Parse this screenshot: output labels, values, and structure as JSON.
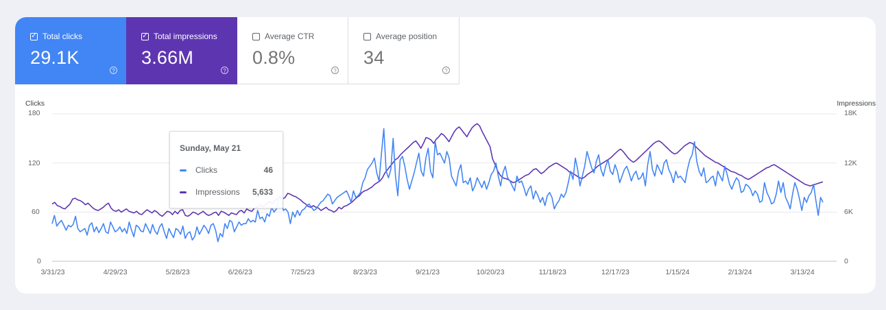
{
  "metrics": [
    {
      "label": "Total clicks",
      "value": "29.1K",
      "checked": true
    },
    {
      "label": "Total impressions",
      "value": "3.66M",
      "checked": true
    },
    {
      "label": "Average CTR",
      "value": "0.8%",
      "checked": false
    },
    {
      "label": "Average position",
      "value": "34",
      "checked": false
    }
  ],
  "icons": {
    "checkbox": "checkbox-icon",
    "help": "help-icon"
  },
  "colors": {
    "clicks": "#4285f4",
    "impressions": "#5e35b1"
  },
  "tooltip": {
    "date": "Sunday, May 21",
    "rows": [
      {
        "label": "Clicks",
        "value": "46"
      },
      {
        "label": "Impressions",
        "value": "5,633"
      }
    ]
  },
  "chart_data": {
    "type": "line",
    "y_left": {
      "label": "Clicks",
      "ticks": [
        "180",
        "120",
        "60",
        "0"
      ],
      "range": [
        0,
        180
      ]
    },
    "y_right": {
      "label": "Impressions",
      "ticks": [
        "18K",
        "12K",
        "6K",
        "0"
      ],
      "range": [
        0,
        18000
      ]
    },
    "x_ticks": [
      "3/31/23",
      "4/29/23",
      "5/28/23",
      "6/26/23",
      "7/25/23",
      "8/23/23",
      "9/21/23",
      "10/20/23",
      "11/18/23",
      "12/17/23",
      "1/15/24",
      "2/13/24",
      "3/13/24"
    ],
    "x_range": [
      "2023-03-31",
      "2024-03-27"
    ],
    "grid": true,
    "series": [
      {
        "name": "Clicks",
        "color": "#4285f4",
        "axis": "left",
        "values": [
          46,
          56,
          43,
          47,
          50,
          44,
          38,
          44,
          42,
          45,
          55,
          40,
          36,
          38,
          40,
          32,
          44,
          47,
          36,
          42,
          35,
          40,
          46,
          36,
          34,
          48,
          42,
          36,
          38,
          42,
          36,
          40,
          34,
          48,
          38,
          30,
          44,
          42,
          37,
          36,
          46,
          40,
          34,
          45,
          37,
          33,
          42,
          46,
          36,
          28,
          40,
          34,
          29,
          40,
          38,
          33,
          43,
          28,
          34,
          36,
          26,
          30,
          42,
          33,
          38,
          44,
          40,
          34,
          44,
          46,
          38,
          24,
          34,
          30,
          46,
          40,
          50,
          48,
          36,
          42,
          48,
          44,
          46,
          46,
          52,
          48,
          50,
          48,
          62,
          52,
          54,
          48,
          58,
          55,
          66,
          60,
          64,
          78,
          76,
          62,
          64,
          60,
          46,
          60,
          54,
          62,
          56,
          62,
          64,
          68,
          70,
          66,
          62,
          64,
          68,
          72,
          74,
          78,
          82,
          80,
          70,
          74,
          78,
          80,
          82,
          84,
          86,
          80,
          72,
          86,
          78,
          80,
          84,
          96,
          102,
          112,
          116,
          120,
          126,
          108,
          98,
          132,
          162,
          110,
          102,
          112,
          150,
          104,
          80,
          124,
          128,
          116,
          100,
          88,
          98,
          108,
          120,
          132,
          110,
          104,
          126,
          138,
          110,
          102,
          146,
          130,
          132,
          126,
          120,
          134,
          126,
          104,
          98,
          92,
          110,
          118,
          96,
          98,
          94,
          102,
          86,
          92,
          102,
          96,
          90,
          98,
          88,
          96,
          106,
          110,
          120,
          104,
          92,
          108,
          116,
          102,
          98,
          92,
          86,
          104,
          96,
          98,
          90,
          80,
          88,
          92,
          76,
          86,
          80,
          72,
          78,
          68,
          80,
          84,
          78,
          64,
          70,
          74,
          82,
          78,
          84,
          96,
          110,
          100,
          126,
          112,
          92,
          104,
          116,
          134,
          124,
          114,
          108,
          122,
          130,
          112,
          104,
          116,
          124,
          110,
          106,
          118,
          110,
          96,
          104,
          112,
          116,
          108,
          98,
          106,
          110,
          100,
          102,
          108,
          92,
          118,
          134,
          112,
          104,
          118,
          112,
          106,
          120,
          124,
          112,
          106,
          96,
          110,
          102,
          104,
          100,
          96,
          112,
          124,
          130,
          146,
          122,
          110,
          104,
          114,
          96,
          98,
          102,
          104,
          92,
          110,
          104,
          98,
          116,
          106,
          94,
          88,
          96,
          102,
          98,
          84,
          86,
          94,
          92,
          88,
          80,
          86,
          82,
          72,
          74,
          96,
          84,
          78,
          70,
          72,
          82,
          98,
          84,
          96,
          78,
          72,
          64,
          82,
          96,
          88,
          76,
          62,
          78,
          72,
          80,
          84,
          94,
          74,
          56,
          78,
          72
        ]
      },
      {
        "name": "Impressions",
        "color": "#5e35b1",
        "axis": "right",
        "values": [
          7000,
          7200,
          6800,
          6700,
          6500,
          6400,
          6700,
          7000,
          7600,
          7700,
          7500,
          7400,
          7200,
          6900,
          7100,
          6800,
          6500,
          6300,
          6200,
          6400,
          6600,
          6900,
          7100,
          6500,
          6200,
          6100,
          6300,
          6000,
          6200,
          6400,
          6100,
          6000,
          5900,
          6100,
          5800,
          5700,
          6000,
          6300,
          6100,
          5900,
          6200,
          6000,
          5700,
          5500,
          5800,
          6100,
          6000,
          5700,
          6100,
          5800,
          6200,
          6300,
          5600,
          5500,
          5700,
          6000,
          5900,
          5700,
          5900,
          6100,
          5800,
          5600,
          5700,
          5900,
          6000,
          5600,
          6100,
          6000,
          5800,
          5600,
          5900,
          5800,
          5700,
          6100,
          6200,
          5900,
          6400,
          6200,
          6100,
          6500,
          6600,
          6900,
          6700,
          6800,
          7100,
          7300,
          7000,
          7400,
          7700,
          7900,
          7600,
          7800,
          8300,
          8200,
          8000,
          7900,
          7700,
          7500,
          7200,
          7000,
          6700,
          6600,
          6800,
          6600,
          6500,
          6200,
          6400,
          6600,
          6300,
          6200,
          6000,
          6200,
          6600,
          6400,
          6700,
          6800,
          7000,
          7200,
          7500,
          7800,
          8000,
          8400,
          8600,
          8700,
          8900,
          9100,
          9400,
          9600,
          9800,
          10200,
          10800,
          11200,
          11600,
          12000,
          12400,
          12600,
          13000,
          13300,
          13600,
          13900,
          14200,
          14500,
          14700,
          14300,
          13800,
          14400,
          15100,
          15000,
          14800,
          14400,
          14900,
          15200,
          15600,
          15400,
          15000,
          14600,
          15200,
          15800,
          16200,
          16400,
          16000,
          15600,
          15200,
          15800,
          16300,
          16600,
          16800,
          16500,
          15800,
          15200,
          14600,
          14000,
          12500,
          11800,
          11000,
          10500,
          10200,
          10100,
          10000,
          9800,
          9600,
          9700,
          9900,
          10100,
          10300,
          10500,
          10600,
          10900,
          11200,
          11300,
          11000,
          10700,
          10900,
          11200,
          11500,
          11700,
          11900,
          12000,
          11800,
          11600,
          11400,
          11200,
          10900,
          10800,
          10600,
          10400,
          10200,
          10100,
          10300,
          10600,
          10800,
          11000,
          11300,
          11600,
          11800,
          12000,
          12200,
          12400,
          12600,
          12900,
          13200,
          13500,
          13700,
          13400,
          13000,
          12600,
          12300,
          12100,
          12300,
          12600,
          12900,
          13200,
          13500,
          13800,
          14100,
          14400,
          14600,
          14700,
          14500,
          14200,
          13900,
          13600,
          13300,
          13100,
          13200,
          13500,
          13800,
          14100,
          14300,
          14500,
          14400,
          14100,
          13800,
          13500,
          13200,
          12900,
          12700,
          12500,
          12300,
          12100,
          12000,
          11800,
          11600,
          11400,
          11200,
          11000,
          10900,
          10800,
          10600,
          10500,
          10300,
          10100,
          10000,
          10200,
          10400,
          10600,
          10800,
          11000,
          11200,
          11400,
          11500,
          11700,
          11800,
          11600,
          11400,
          11200,
          11000,
          10800,
          10600,
          10400,
          10200,
          10000,
          9800,
          9600,
          9400,
          9300,
          9200,
          9300,
          9400,
          9500,
          9600,
          9700
        ]
      }
    ]
  }
}
